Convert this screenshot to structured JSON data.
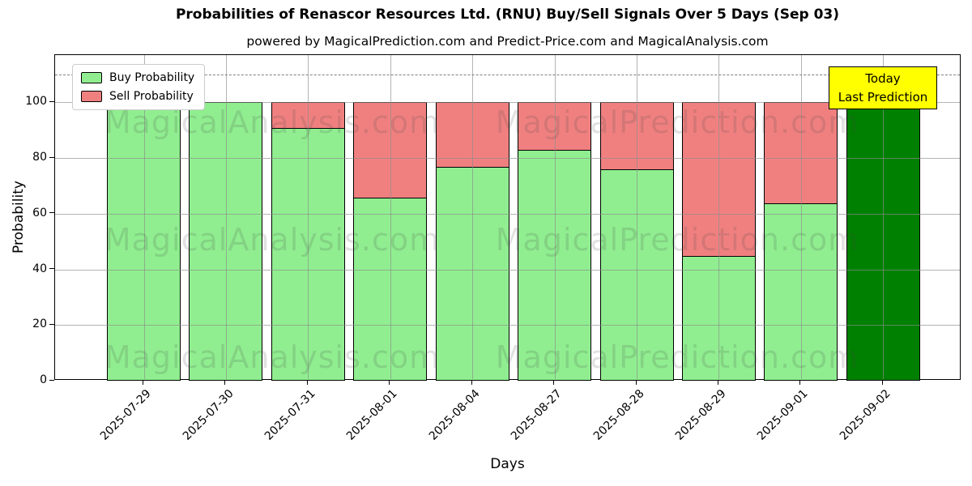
{
  "title": "Probabilities of Renascor Resources Ltd. (RNU) Buy/Sell Signals Over 5 Days (Sep 03)",
  "subtitle": "powered by MagicalPrediction.com and Predict-Price.com and MagicalAnalysis.com",
  "chart_data": {
    "type": "bar",
    "stacked": true,
    "title": "Probabilities of Renascor Resources Ltd. (RNU) Buy/Sell Signals Over 5 Days (Sep 03)",
    "xlabel": "Days",
    "ylabel": "Probability",
    "categories": [
      "2025-07-29",
      "2025-07-30",
      "2025-07-31",
      "2025-08-01",
      "2025-08-04",
      "2025-08-27",
      "2025-08-28",
      "2025-08-29",
      "2025-09-01",
      "2025-09-02"
    ],
    "series": [
      {
        "name": "Buy Probability",
        "color": "#90EE90",
        "values": [
          100,
          100,
          91,
          66,
          77,
          83,
          76,
          45,
          64,
          100
        ]
      },
      {
        "name": "Sell Probability",
        "color": "#F08080",
        "values": [
          0,
          0,
          9,
          34,
          23,
          17,
          24,
          55,
          36,
          0
        ]
      }
    ],
    "today_bar": {
      "index": 9,
      "color": "#008000"
    },
    "bar_edge_color": "#000000",
    "ylim": [
      0,
      117
    ],
    "yticks": [
      0,
      20,
      40,
      60,
      80,
      100
    ],
    "grid": true,
    "legend_position": "upper left",
    "dashed_line_y": 110,
    "dashed_line_color": "#7f7f7f",
    "annotation": {
      "lines": [
        "Today",
        "Last Prediction"
      ],
      "bg": "#FFFF00"
    },
    "watermarks": [
      "MagicalAnalysis.com",
      "MagicalPrediction.com"
    ],
    "background": "#FFFFFF"
  }
}
